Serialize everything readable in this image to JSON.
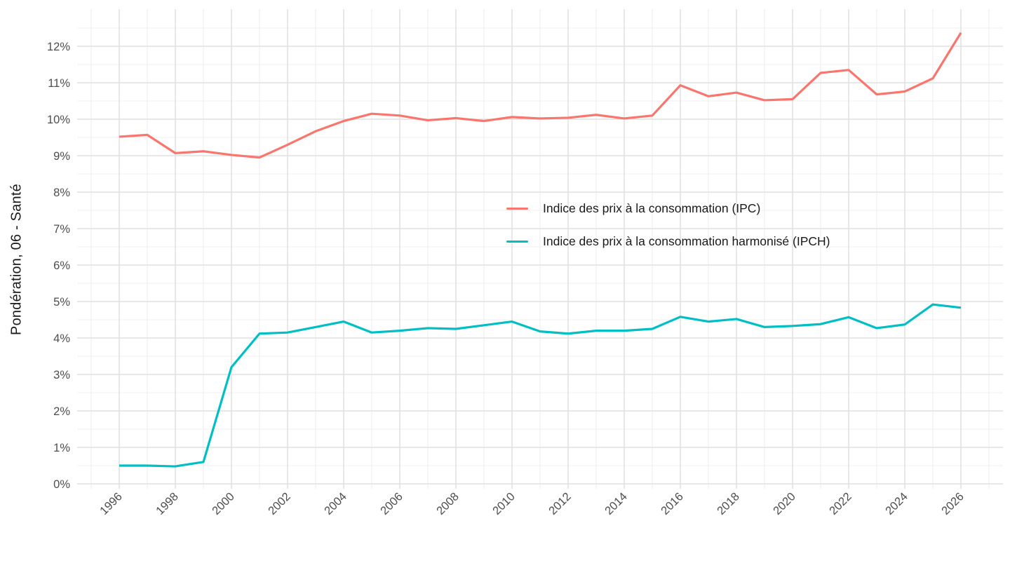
{
  "chart_data": {
    "type": "line",
    "title": "",
    "xlabel": "",
    "ylabel": "Pondération, 06 - Santé",
    "x": [
      1996,
      1997,
      1998,
      1999,
      2000,
      2001,
      2002,
      2003,
      2004,
      2005,
      2006,
      2007,
      2008,
      2009,
      2010,
      2011,
      2012,
      2013,
      2014,
      2015,
      2016,
      2017,
      2018,
      2019,
      2020,
      2021,
      2022,
      2023,
      2024,
      2025,
      2026
    ],
    "series": [
      {
        "name": "Indice des prix à la consommation (IPC)",
        "color": "#F8766D",
        "values": [
          9.52,
          9.57,
          9.07,
          9.12,
          9.02,
          8.95,
          9.3,
          9.67,
          9.95,
          10.15,
          10.1,
          9.97,
          10.03,
          9.95,
          10.06,
          10.02,
          10.04,
          10.12,
          10.02,
          10.1,
          10.93,
          10.63,
          10.73,
          10.52,
          10.55,
          11.27,
          11.35,
          10.68,
          10.76,
          11.12,
          12.37
        ]
      },
      {
        "name": "Indice des prix à la consommation harmonisé (IPCH)",
        "color": "#00BFC4",
        "values": [
          0.5,
          0.5,
          0.48,
          0.6,
          3.2,
          4.12,
          4.15,
          4.3,
          4.45,
          4.15,
          4.2,
          4.27,
          4.25,
          4.35,
          4.45,
          4.18,
          4.12,
          4.2,
          4.2,
          4.25,
          4.58,
          4.45,
          4.52,
          4.3,
          4.33,
          4.38,
          4.57,
          4.27,
          4.37,
          4.92,
          4.83
        ]
      }
    ],
    "x_tick_labels": [
      "1996",
      "1998",
      "2000",
      "2002",
      "2004",
      "2006",
      "2008",
      "2010",
      "2012",
      "2014",
      "2016",
      "2018",
      "2020",
      "2022",
      "2024",
      "2026"
    ],
    "y_tick_labels": [
      "0%",
      "1%",
      "2%",
      "3%",
      "4%",
      "5%",
      "6%",
      "7%",
      "8%",
      "9%",
      "10%",
      "11%",
      "12%"
    ],
    "xlim": [
      1994.5,
      2027.5
    ],
    "ylim": [
      0,
      13
    ],
    "grid": "on",
    "legend_position": "inside-center-right",
    "x_tick_rotation_deg": 45
  },
  "colors": {
    "background": "#FFFFFF",
    "grid_major": "#E4E4E4",
    "grid_minor": "#EFEFEF",
    "axis_text": "#4D4D4D",
    "axis_title_text": "#1A1A1A",
    "series_ipc": "#F8766D",
    "series_ipch": "#00BFC4"
  }
}
